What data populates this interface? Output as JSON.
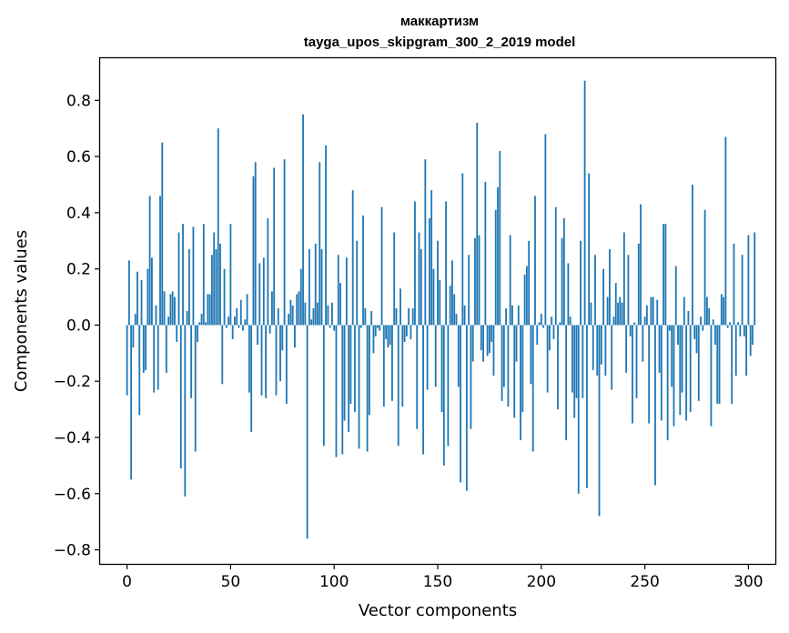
{
  "chart_data": {
    "type": "bar",
    "title": "маккартизм",
    "subtitle": "tayga_upos_skipgram_300_2_2019 model",
    "xlabel": "Vector components",
    "ylabel": "Components values",
    "xlim": [
      -13,
      313
    ],
    "ylim": [
      -0.85,
      0.95
    ],
    "xticks": [
      0,
      50,
      100,
      150,
      200,
      250,
      300
    ],
    "yticks": [
      -0.8,
      -0.6,
      -0.4,
      -0.2,
      0.0,
      0.2,
      0.4,
      0.6,
      0.8
    ],
    "ytick_labels": [
      "−0.8",
      "−0.6",
      "−0.4",
      "−0.2",
      "0.0",
      "0.2",
      "0.4",
      "0.6",
      "0.8"
    ],
    "bar_color": "#1f77b4",
    "series": [
      {
        "name": "components",
        "values": [
          -0.25,
          0.23,
          -0.55,
          -0.08,
          0.04,
          0.19,
          -0.32,
          0.16,
          -0.17,
          -0.16,
          0.2,
          0.46,
          0.24,
          -0.24,
          0.07,
          -0.23,
          0.46,
          0.65,
          0.12,
          -0.17,
          0.03,
          0.11,
          0.12,
          0.1,
          -0.06,
          0.33,
          -0.51,
          0.36,
          -0.61,
          0.05,
          0.27,
          -0.26,
          0.35,
          -0.45,
          -0.06,
          0.01,
          0.04,
          0.36,
          0.01,
          0.11,
          0.11,
          0.25,
          0.33,
          0.27,
          0.7,
          0.29,
          -0.21,
          0.2,
          -0.01,
          0.03,
          0.36,
          -0.05,
          0.03,
          0.06,
          -0.01,
          0.09,
          -0.02,
          0.02,
          0.11,
          -0.24,
          -0.38,
          0.53,
          0.58,
          -0.07,
          0.22,
          -0.25,
          0.24,
          -0.26,
          0.38,
          -0.03,
          0.12,
          0.56,
          -0.25,
          0.06,
          -0.2,
          -0.09,
          0.59,
          -0.28,
          0.04,
          0.09,
          0.07,
          -0.08,
          0.11,
          0.12,
          0.2,
          0.75,
          0.08,
          -0.76,
          0.27,
          0.02,
          0.06,
          0.29,
          0.08,
          0.58,
          0.27,
          -0.43,
          0.64,
          0.07,
          -0.01,
          0.08,
          -0.02,
          -0.47,
          0.25,
          0.15,
          -0.46,
          -0.34,
          0.24,
          -0.38,
          -0.28,
          0.48,
          -0.31,
          0.3,
          -0.44,
          -0.01,
          0.39,
          0.06,
          -0.45,
          -0.32,
          0.05,
          -0.1,
          -0.04,
          -0.01,
          -0.02,
          0.42,
          -0.29,
          -0.05,
          -0.08,
          -0.07,
          -0.27,
          0.33,
          0.06,
          -0.43,
          0.13,
          -0.29,
          -0.06,
          -0.04,
          0.06,
          -0.05,
          0.06,
          0.44,
          -0.37,
          0.33,
          0.27,
          -0.46,
          0.59,
          -0.23,
          0.38,
          0.48,
          0.2,
          -0.22,
          0.3,
          0.16,
          -0.31,
          -0.5,
          0.44,
          -0.43,
          0.14,
          0.23,
          0.11,
          0.04,
          -0.22,
          -0.56,
          0.54,
          0.07,
          -0.59,
          0.25,
          -0.37,
          -0.13,
          0.31,
          0.72,
          0.32,
          -0.09,
          -0.13,
          0.51,
          -0.11,
          -0.1,
          -0.06,
          -0.18,
          0.41,
          0.49,
          0.62,
          -0.27,
          -0.22,
          0.06,
          -0.29,
          0.32,
          0.07,
          -0.33,
          -0.13,
          0.07,
          -0.41,
          -0.31,
          0.18,
          0.21,
          0.3,
          -0.21,
          -0.45,
          0.46,
          -0.07,
          0.01,
          0.04,
          -0.01,
          0.68,
          -0.24,
          -0.09,
          0.03,
          -0.05,
          0.42,
          -0.3,
          0.01,
          0.31,
          0.38,
          -0.41,
          0.22,
          0.03,
          -0.24,
          -0.33,
          -0.26,
          -0.6,
          0.3,
          -0.26,
          0.87,
          -0.58,
          0.54,
          0.08,
          -0.16,
          0.25,
          -0.18,
          -0.68,
          -0.14,
          0.2,
          -0.18,
          0.1,
          0.27,
          -0.23,
          0.03,
          0.15,
          0.08,
          0.1,
          0.08,
          0.33,
          -0.17,
          0.25,
          -0.04,
          -0.35,
          0.01,
          -0.26,
          0.29,
          0.43,
          -0.13,
          0.03,
          0.07,
          -0.35,
          0.1,
          0.1,
          -0.57,
          0.09,
          -0.17,
          -0.34,
          0.36,
          0.36,
          -0.41,
          -0.02,
          -0.22,
          -0.36,
          0.21,
          -0.07,
          -0.32,
          -0.24,
          0.1,
          -0.34,
          0.05,
          -0.31,
          0.5,
          -0.05,
          -0.1,
          -0.27,
          0.03,
          -0.02,
          0.41,
          0.1,
          0.06,
          -0.36,
          0.02,
          -0.07,
          -0.28,
          -0.28,
          0.11,
          0.1,
          0.67,
          -0.01,
          0.01,
          -0.28,
          0.29,
          -0.18,
          0.01,
          -0.04,
          0.25,
          -0.04,
          -0.18,
          0.32,
          -0.11,
          -0.07,
          0.33
        ]
      }
    ]
  }
}
